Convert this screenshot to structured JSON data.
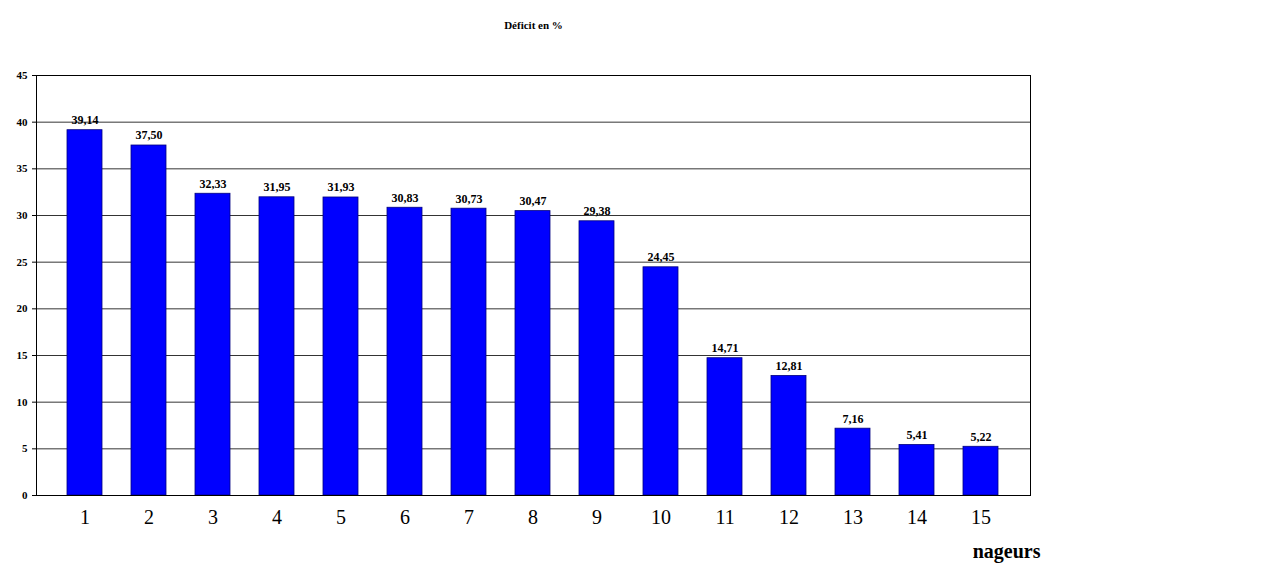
{
  "chart_data": {
    "type": "bar",
    "title": "Déficit en %",
    "x_label": "nageurs",
    "categories": [
      "1",
      "2",
      "3",
      "4",
      "5",
      "6",
      "7",
      "8",
      "9",
      "10",
      "11",
      "12",
      "13",
      "14",
      "15"
    ],
    "values": [
      39.14,
      37.5,
      32.33,
      31.95,
      31.93,
      30.83,
      30.73,
      30.47,
      29.38,
      24.45,
      14.71,
      12.81,
      7.16,
      5.41,
      5.22
    ],
    "value_labels": [
      "39,14",
      "37,50",
      "32,33",
      "31,95",
      "31,93",
      "30,83",
      "30,73",
      "30,47",
      "29,38",
      "24,45",
      "14,71",
      "12,81",
      "7,16",
      "5,41",
      "5,22"
    ],
    "color": "#0000ff",
    "ylim": [
      0,
      45
    ],
    "yticks": [
      0,
      5,
      10,
      15,
      20,
      25,
      30,
      35,
      40,
      45
    ],
    "grid": true,
    "data_labels": true
  }
}
